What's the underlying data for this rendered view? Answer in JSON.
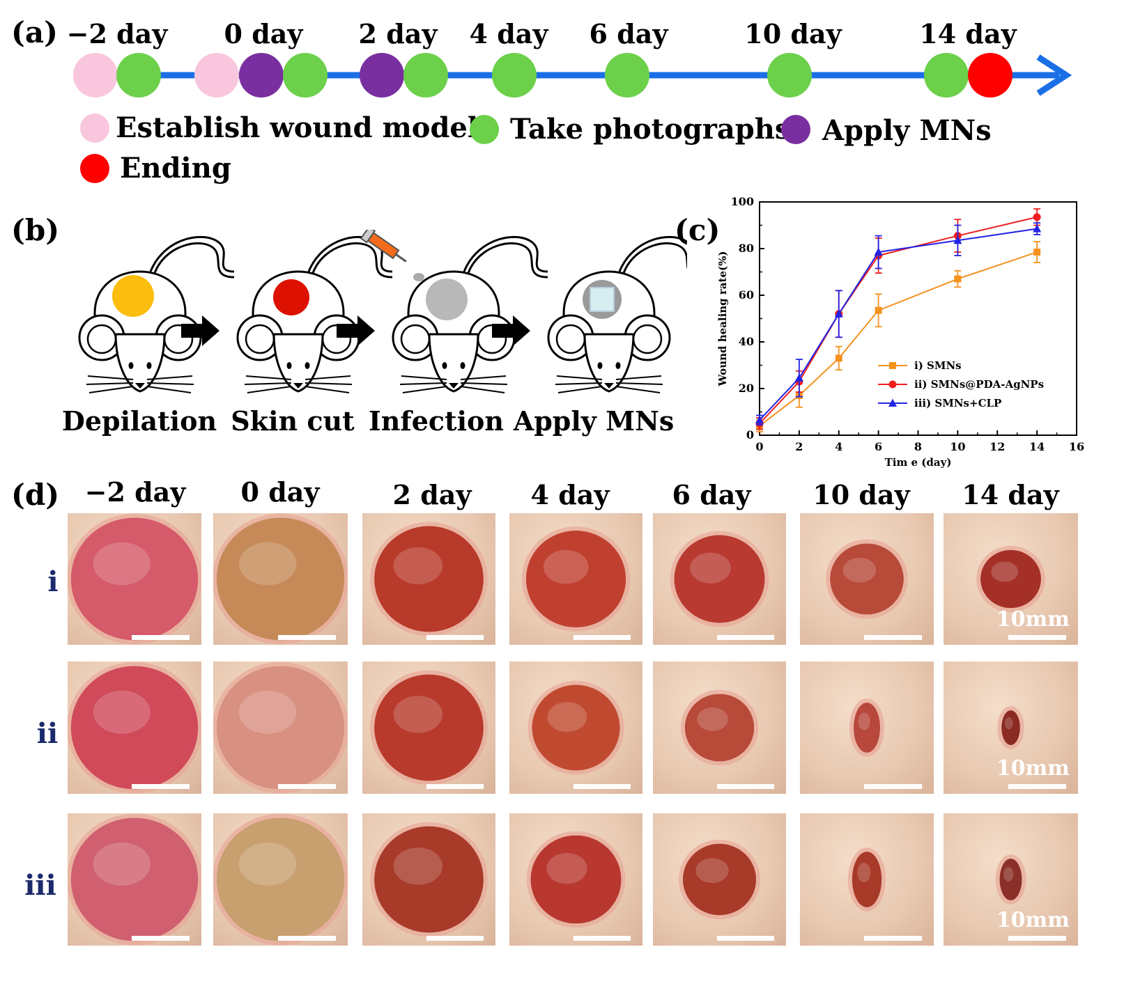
{
  "panel_a": {
    "label": "(a)",
    "days": [
      "−2 day",
      "0 day",
      "2 day",
      "4 day",
      "6 day",
      "10 day",
      "14 day"
    ],
    "colors": {
      "pink": "#f9c7dd",
      "green": "#6cd04a",
      "purple": "#7a2fa0",
      "red": "#ff0000",
      "arrow": "#1a6fe6"
    },
    "legend": [
      {
        "color": "pink",
        "label": "Establish wound model"
      },
      {
        "color": "green",
        "label": "Take photographs"
      },
      {
        "color": "purple",
        "label": "Apply MNs"
      },
      {
        "color": "red",
        "label": "Ending"
      }
    ]
  },
  "panel_b": {
    "label": "(b)",
    "steps": [
      "Depilation",
      "Skin cut",
      "Infection",
      "Apply MNs"
    ],
    "colors": {
      "depilation": "#fbbd0e",
      "cut": "#dd1100",
      "infection": "#b8b8b8",
      "mn_patch": "#d6eef0"
    }
  },
  "panel_c": {
    "label": "(c)"
  },
  "chart_data": {
    "type": "line",
    "title": "",
    "xlabel": "Tim e (day)",
    "ylabel": "Wound healing rate(%)",
    "xlim": [
      0,
      16
    ],
    "ylim": [
      0,
      100
    ],
    "xticks": [
      "0",
      "2",
      "4",
      "6",
      "8",
      "10",
      "12",
      "14",
      "16"
    ],
    "yticks": [
      "0",
      "20",
      "40",
      "60",
      "80",
      "100"
    ],
    "x": [
      0,
      2,
      4,
      6,
      10,
      14
    ],
    "legend_position": "lower-right",
    "series": [
      {
        "name": "i) SMNs",
        "color": "#f4921e",
        "marker": "square",
        "values": [
          4,
          17,
          33,
          53.5,
          67,
          78.5
        ],
        "errors": [
          2.5,
          5,
          5,
          7,
          3.5,
          4.5
        ]
      },
      {
        "name": "ii) SMNs@PDA-AgNPs",
        "color": "#ef1f1f",
        "marker": "circle",
        "values": [
          5,
          23,
          52,
          77,
          85.5,
          93.5
        ],
        "errors": [
          2.5,
          4.5,
          10,
          7.5,
          7,
          3.5
        ]
      },
      {
        "name": "iii) SMNs+CLP",
        "color": "#2323e6",
        "marker": "triangle",
        "values": [
          6.5,
          24.5,
          52,
          78.5,
          83.5,
          88.5
        ],
        "errors": [
          2,
          8,
          10,
          7,
          6.5,
          2.5
        ]
      }
    ]
  },
  "panel_d": {
    "label": "(d)",
    "days": [
      "−2 day",
      "0 day",
      "2 day",
      "4 day",
      "6 day",
      "10 day",
      "14 day"
    ],
    "rows": [
      "i",
      "ii",
      "iii"
    ],
    "scale_text": "10mm"
  }
}
